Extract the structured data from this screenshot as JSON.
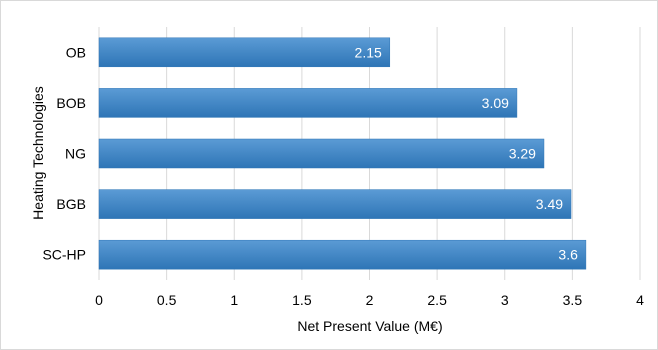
{
  "chart_data": {
    "type": "bar",
    "orientation": "horizontal",
    "title": "",
    "xlabel": "Net Present Value (M€)",
    "ylabel": "Heating Technologies",
    "categories": [
      "OB",
      "BOB",
      "NG",
      "BGB",
      "SC-HP"
    ],
    "values": [
      2.15,
      3.09,
      3.29,
      3.49,
      3.6
    ],
    "value_labels": [
      "2.15",
      "3.09",
      "3.29",
      "3.49",
      "3.6"
    ],
    "xlim": [
      0,
      4
    ],
    "xticks": [
      "0",
      "0.5",
      "1",
      "1.5",
      "2",
      "2.5",
      "3",
      "3.5",
      "4"
    ],
    "grid": true,
    "legend": "none",
    "colors": {
      "bar_top": "#5b9bd5",
      "bar_bottom": "#2e75b6",
      "bar_edge": "#2e75b6",
      "grid": "#d9d9d9",
      "axis_text": "#000000",
      "value_label": "#ffffff"
    }
  }
}
